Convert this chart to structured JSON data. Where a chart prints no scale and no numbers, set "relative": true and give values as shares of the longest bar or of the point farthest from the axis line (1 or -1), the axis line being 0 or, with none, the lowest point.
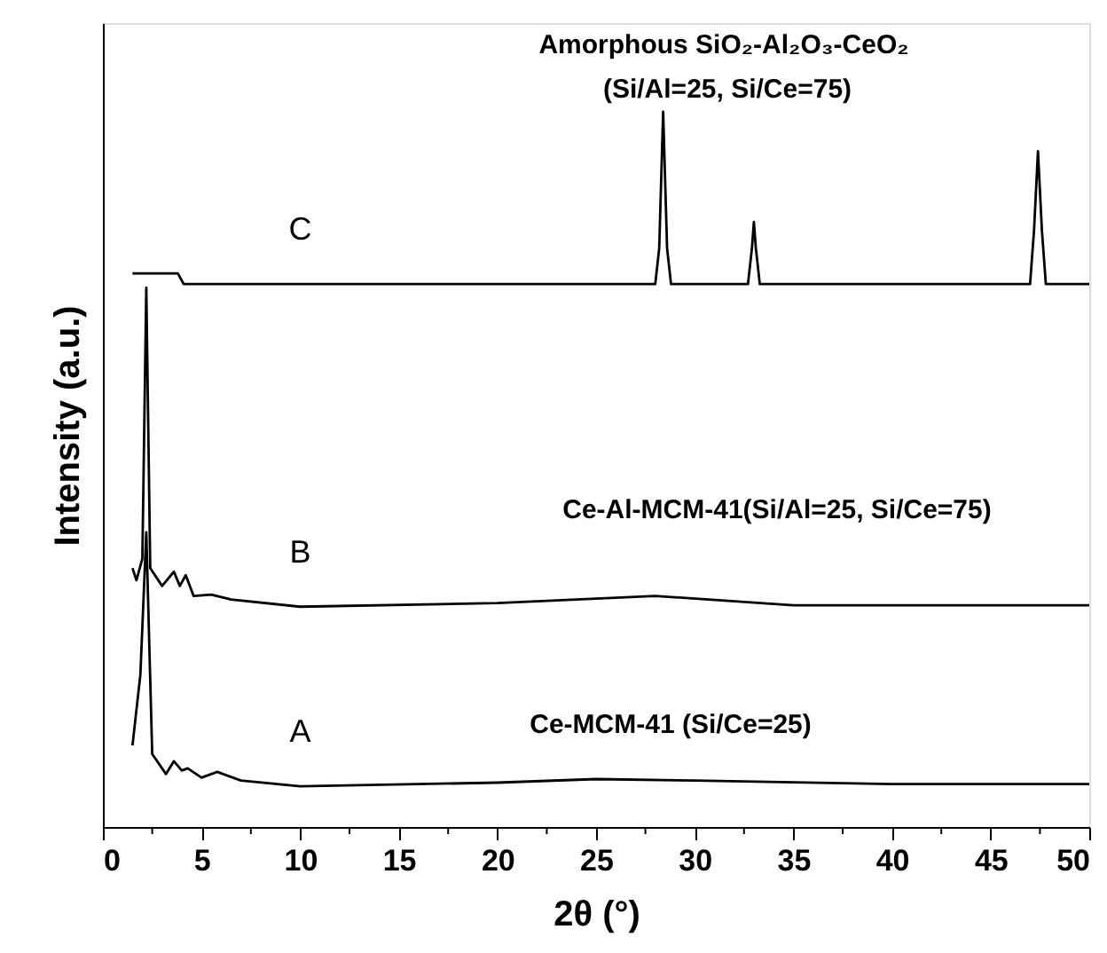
{
  "chart_data": {
    "type": "line",
    "relative": true,
    "xlabel": "2θ (°)",
    "ylabel": "Intensity (a.u.)",
    "xlim": [
      0,
      50
    ],
    "xticks": [
      0,
      {
        "value": 2.5,
        "label": null
      },
      5,
      {
        "value": 7.5,
        "label": null
      },
      10,
      {
        "value": 12.5,
        "label": null
      },
      15,
      {
        "value": 17.5,
        "label": null
      },
      20,
      {
        "value": 22.5,
        "label": null
      },
      25,
      {
        "value": 27.5,
        "label": null
      },
      30,
      {
        "value": 32.5,
        "label": null
      },
      35,
      {
        "value": 37.5,
        "label": null
      },
      40,
      {
        "value": 42.5,
        "label": null
      },
      45,
      {
        "value": 47.5,
        "label": null
      },
      50
    ],
    "grid": false,
    "annotations": [
      "Amorphous SiO₂-Al₂O₃-CeO₂",
      "(Si/Al=25, Si/Ce=75)",
      "Ce-Al-MCM-41(Si/Al=25, Si/Ce=75)",
      "Ce-MCM-41 (Si/Ce=25)"
    ],
    "series": [
      {
        "name": "A",
        "color": "#000000",
        "x": [
          1.5,
          1.9,
          2.2,
          2.5,
          3.2,
          3.6,
          4.0,
          4.3,
          5.0,
          5.8,
          7,
          10,
          20,
          25,
          30,
          40,
          50
        ],
        "values": [
          0.114,
          0.213,
          0.412,
          0.102,
          0.074,
          0.092,
          0.079,
          0.082,
          0.069,
          0.077,
          0.065,
          0.057,
          0.062,
          0.067,
          0.065,
          0.06,
          0.06
        ]
      },
      {
        "name": "B",
        "color": "#000000",
        "x": [
          1.5,
          1.7,
          2.0,
          2.2,
          2.4,
          3.0,
          3.6,
          3.9,
          4.2,
          4.6,
          5.5,
          6.5,
          10,
          20,
          28,
          35,
          50
        ],
        "values": [
          0.362,
          0.345,
          0.375,
          0.754,
          0.362,
          0.337,
          0.357,
          0.337,
          0.352,
          0.323,
          0.325,
          0.318,
          0.308,
          0.313,
          0.323,
          0.31,
          0.31
        ]
      },
      {
        "name": "C",
        "color": "#000000",
        "x": [
          1.5,
          3.8,
          4.1,
          10,
          25,
          28.0,
          28.2,
          28.4,
          28.6,
          28.8,
          32.7,
          32.9,
          33.0,
          33.1,
          33.3,
          47.0,
          47.2,
          47.4,
          47.6,
          47.8,
          50
        ],
        "values": [
          0.774,
          0.774,
          0.759,
          0.759,
          0.759,
          0.759,
          0.809,
          1.0,
          0.809,
          0.759,
          0.759,
          0.809,
          0.846,
          0.809,
          0.759,
          0.759,
          0.834,
          0.945,
          0.834,
          0.759,
          0.759
        ]
      }
    ]
  }
}
